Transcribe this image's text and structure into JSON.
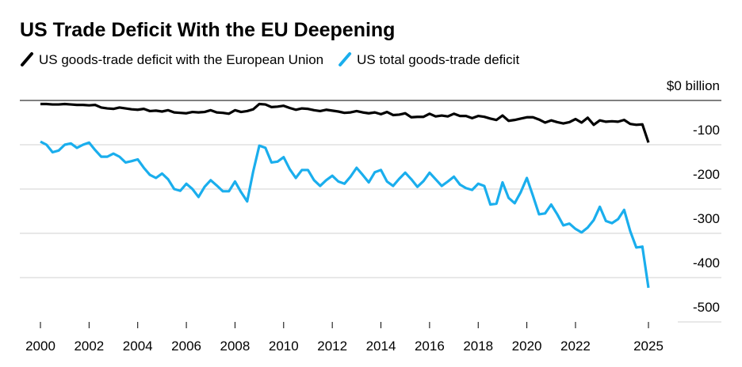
{
  "chart_data": {
    "type": "line",
    "title": "US Trade Deficit With the EU Deepening",
    "x": [
      2000,
      2000.25,
      2000.5,
      2000.75,
      2001,
      2001.25,
      2001.5,
      2001.75,
      2002,
      2002.25,
      2002.5,
      2002.75,
      2003,
      2003.25,
      2003.5,
      2003.75,
      2004,
      2004.25,
      2004.5,
      2004.75,
      2005,
      2005.25,
      2005.5,
      2005.75,
      2006,
      2006.25,
      2006.5,
      2006.75,
      2007,
      2007.25,
      2007.5,
      2007.75,
      2008,
      2008.25,
      2008.5,
      2008.75,
      2009,
      2009.25,
      2009.5,
      2009.75,
      2010,
      2010.25,
      2010.5,
      2010.75,
      2011,
      2011.25,
      2011.5,
      2011.75,
      2012,
      2012.25,
      2012.5,
      2012.75,
      2013,
      2013.25,
      2013.5,
      2013.75,
      2014,
      2014.25,
      2014.5,
      2014.75,
      2015,
      2015.25,
      2015.5,
      2015.75,
      2016,
      2016.25,
      2016.5,
      2016.75,
      2017,
      2017.25,
      2017.5,
      2017.75,
      2018,
      2018.25,
      2018.5,
      2018.75,
      2019,
      2019.25,
      2019.5,
      2019.75,
      2020,
      2020.25,
      2020.5,
      2020.75,
      2021,
      2021.25,
      2021.5,
      2021.75,
      2022,
      2022.25,
      2022.5,
      2022.75,
      2023,
      2023.25,
      2023.5,
      2023.75,
      2024,
      2024.25,
      2024.5,
      2024.75,
      2025
    ],
    "series": [
      {
        "name": "US goods-trade deficit with the European Union",
        "color": "#000000",
        "values": [
          -8,
          -8,
          -9,
          -9,
          -8,
          -9,
          -10,
          -10,
          -11,
          -10,
          -16,
          -18,
          -19,
          -16,
          -18,
          -20,
          -21,
          -19,
          -24,
          -23,
          -25,
          -22,
          -27,
          -28,
          -29,
          -26,
          -27,
          -26,
          -22,
          -27,
          -28,
          -30,
          -22,
          -26,
          -24,
          -20,
          -8,
          -9,
          -15,
          -14,
          -12,
          -17,
          -21,
          -18,
          -19,
          -22,
          -24,
          -21,
          -23,
          -25,
          -28,
          -27,
          -24,
          -27,
          -29,
          -27,
          -31,
          -26,
          -33,
          -32,
          -29,
          -38,
          -37,
          -37,
          -30,
          -36,
          -34,
          -36,
          -30,
          -35,
          -35,
          -40,
          -35,
          -37,
          -41,
          -44,
          -34,
          -46,
          -44,
          -41,
          -38,
          -38,
          -43,
          -50,
          -45,
          -49,
          -52,
          -49,
          -42,
          -50,
          -39,
          -55,
          -45,
          -48,
          -47,
          -48,
          -44,
          -53,
          -55,
          -54,
          -95
        ]
      },
      {
        "name": "US total goods-trade deficit",
        "color": "#1aaeed",
        "values": [
          -93,
          -100,
          -117,
          -113,
          -100,
          -97,
          -107,
          -100,
          -95,
          -112,
          -127,
          -127,
          -120,
          -127,
          -140,
          -137,
          -133,
          -152,
          -168,
          -175,
          -165,
          -178,
          -200,
          -204,
          -188,
          -200,
          -218,
          -195,
          -180,
          -192,
          -205,
          -205,
          -183,
          -207,
          -228,
          -160,
          -102,
          -107,
          -140,
          -138,
          -128,
          -155,
          -175,
          -157,
          -157,
          -180,
          -193,
          -180,
          -170,
          -183,
          -188,
          -172,
          -152,
          -168,
          -185,
          -162,
          -157,
          -183,
          -193,
          -177,
          -163,
          -178,
          -195,
          -182,
          -163,
          -178,
          -193,
          -183,
          -172,
          -190,
          -198,
          -202,
          -188,
          -193,
          -235,
          -233,
          -185,
          -220,
          -232,
          -207,
          -175,
          -215,
          -257,
          -255,
          -235,
          -257,
          -282,
          -278,
          -290,
          -298,
          -287,
          -270,
          -240,
          -272,
          -277,
          -268,
          -247,
          -295,
          -332,
          -330,
          -423
        ]
      }
    ],
    "xlim": [
      2000,
      2025
    ],
    "xticks": [
      2000,
      2002,
      2004,
      2006,
      2008,
      2010,
      2012,
      2014,
      2016,
      2018,
      2020,
      2022,
      2025
    ],
    "ylim": [
      -500,
      0
    ],
    "yticks": [
      {
        "value": 0,
        "label": "$0 billion"
      },
      -100,
      -200,
      -300,
      -400,
      -500
    ],
    "grid": true
  }
}
